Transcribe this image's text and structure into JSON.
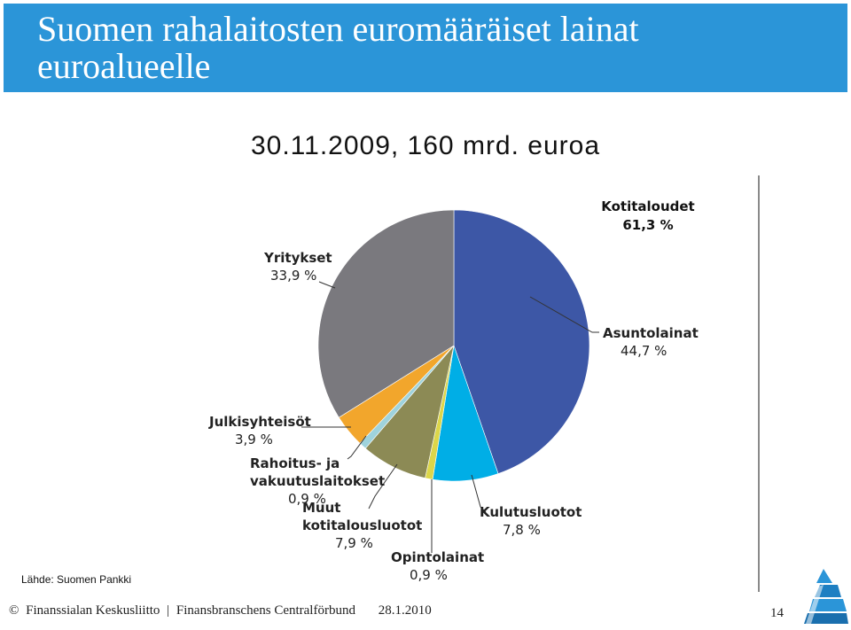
{
  "slide": {
    "title": "Suomen rahalaitosten euromääräiset lainat euroalueelle",
    "subtitle": "30.11.2009, 160 mrd. euroa",
    "source": "Lähde: Suomen Pankki",
    "footer": {
      "copyright": "©",
      "org1": "Finanssialan Keskusliitto",
      "separator": "|",
      "org2": "Finansbranschens Centralförbund",
      "date": "28.1.2010"
    },
    "page_number": "14"
  },
  "chart_data": {
    "type": "pie",
    "title": "30.11.2009, 160 mrd. euroa",
    "group": {
      "name": "Kotitaloudet",
      "value": "61,3 %"
    },
    "slices": [
      {
        "name": "Asuntolainat",
        "value": 44.7,
        "label": "44,7 %",
        "color": "#3d57a6"
      },
      {
        "name": "Kulutusluotot",
        "value": 7.8,
        "label": "7,8 %",
        "color": "#00aee6"
      },
      {
        "name": "Opintolainat",
        "value": 0.9,
        "label": "0,9 %",
        "color": "#dcd64a"
      },
      {
        "name": "Muut kotitalousluotot",
        "value": 7.9,
        "label": "7,9 %",
        "color": "#8c8a55"
      },
      {
        "name": "Rahoitus- ja vakuutuslaitokset",
        "value": 0.9,
        "label": "0,9 %",
        "color": "#9fd3dc"
      },
      {
        "name": "Julkisyhteisöt",
        "value": 3.9,
        "label": "3,9 %",
        "color": "#f2a62c"
      },
      {
        "name": "Yritykset",
        "value": 33.9,
        "label": "33,9 %",
        "color": "#7a797e"
      }
    ]
  }
}
